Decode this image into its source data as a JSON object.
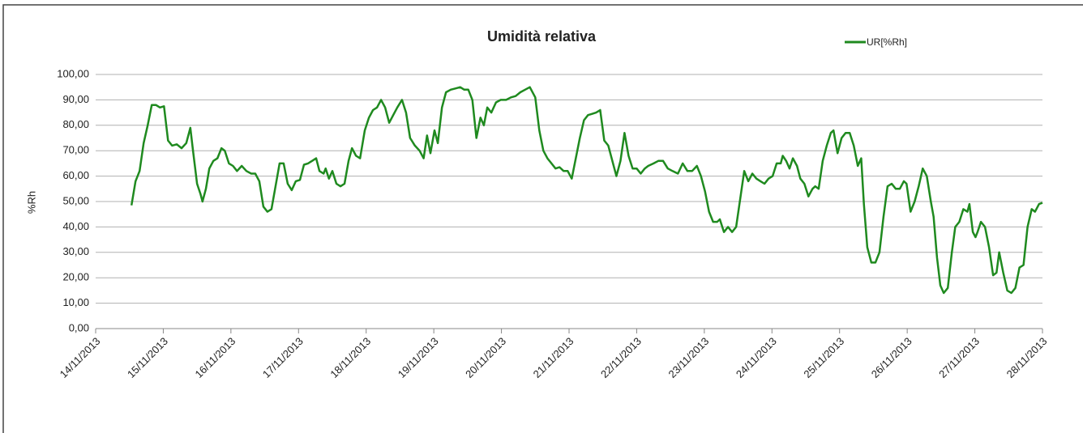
{
  "chart_data": {
    "type": "line",
    "title": "Umidità relativa",
    "y_label": "%Rh",
    "xlim": [
      14,
      28
    ],
    "xticks": [
      {
        "value": 14,
        "label": "14/11/2013"
      },
      {
        "value": 15,
        "label": "15/11/2013"
      },
      {
        "value": 16,
        "label": "16/11/2013"
      },
      {
        "value": 17,
        "label": "17/11/2013"
      },
      {
        "value": 18,
        "label": "18/11/2013"
      },
      {
        "value": 19,
        "label": "19/11/2013"
      },
      {
        "value": 20,
        "label": "20/11/2013"
      },
      {
        "value": 21,
        "label": "21/11/2013"
      },
      {
        "value": 22,
        "label": "22/11/2013"
      },
      {
        "value": 23,
        "label": "23/11/2013"
      },
      {
        "value": 24,
        "label": "24/11/2013"
      },
      {
        "value": 25,
        "label": "25/11/2013"
      },
      {
        "value": 26,
        "label": "26/11/2013"
      },
      {
        "value": 27,
        "label": "27/11/2013"
      },
      {
        "value": 28,
        "label": "28/11/2013"
      }
    ],
    "ylim": [
      0,
      100
    ],
    "yticks": [
      {
        "value": 0,
        "label": "0,00"
      },
      {
        "value": 10,
        "label": "10,00"
      },
      {
        "value": 20,
        "label": "20,00"
      },
      {
        "value": 30,
        "label": "30,00"
      },
      {
        "value": 40,
        "label": "40,00"
      },
      {
        "value": 50,
        "label": "50,00"
      },
      {
        "value": 60,
        "label": "60,00"
      },
      {
        "value": 70,
        "label": "70,00"
      },
      {
        "value": 80,
        "label": "80,00"
      },
      {
        "value": 90,
        "label": "90,00"
      },
      {
        "value": 100,
        "label": "100,00"
      }
    ],
    "grid": true,
    "legend": "top-right",
    "x": [
      14.53,
      14.59,
      14.65,
      14.71,
      14.77,
      14.83,
      14.89,
      14.95,
      15.01,
      15.07,
      15.13,
      15.2,
      15.27,
      15.34,
      15.4,
      15.44,
      15.5,
      15.55,
      15.58,
      15.63,
      15.68,
      15.74,
      15.8,
      15.86,
      15.91,
      15.97,
      16.03,
      16.09,
      16.16,
      16.23,
      16.3,
      16.36,
      16.42,
      16.48,
      16.54,
      16.6,
      16.66,
      16.72,
      16.78,
      16.84,
      16.9,
      16.96,
      17.02,
      17.08,
      17.14,
      17.2,
      17.26,
      17.31,
      17.37,
      17.4,
      17.45,
      17.5,
      17.56,
      17.62,
      17.68,
      17.74,
      17.79,
      17.85,
      17.91,
      17.98,
      18.04,
      18.1,
      18.16,
      18.22,
      18.28,
      18.34,
      18.4,
      18.46,
      18.53,
      18.59,
      18.65,
      18.72,
      18.79,
      18.85,
      18.9,
      18.95,
      19.01,
      19.06,
      19.12,
      19.18,
      19.25,
      19.32,
      19.39,
      19.45,
      19.51,
      19.57,
      19.63,
      19.69,
      19.74,
      19.79,
      19.85,
      19.92,
      19.99,
      20.07,
      20.14,
      20.21,
      20.28,
      20.35,
      20.42,
      20.5,
      20.56,
      20.62,
      20.68,
      20.74,
      20.8,
      20.86,
      20.92,
      20.98,
      21.04,
      21.1,
      21.16,
      21.22,
      21.28,
      21.34,
      21.4,
      21.46,
      21.52,
      21.58,
      21.64,
      21.7,
      21.76,
      21.82,
      21.88,
      21.94,
      22.0,
      22.06,
      22.12,
      22.17,
      22.25,
      22.32,
      22.39,
      22.46,
      22.53,
      22.61,
      22.68,
      22.75,
      22.82,
      22.89,
      22.95,
      23.01,
      23.07,
      23.13,
      23.19,
      23.23,
      23.29,
      23.35,
      23.41,
      23.47,
      23.53,
      23.59,
      23.65,
      23.71,
      23.77,
      23.83,
      23.89,
      23.95,
      24.01,
      24.07,
      24.13,
      24.16,
      24.21,
      24.26,
      24.31,
      24.37,
      24.42,
      24.48,
      24.54,
      24.6,
      24.64,
      24.69,
      24.75,
      24.81,
      24.87,
      24.91,
      24.97,
      25.03,
      25.09,
      25.15,
      25.21,
      25.27,
      25.32,
      25.36,
      25.41,
      25.47,
      25.53,
      25.59,
      25.65,
      25.71,
      25.77,
      25.83,
      25.89,
      25.95,
      25.99,
      26.05,
      26.11,
      26.17,
      26.23,
      26.29,
      26.35,
      26.39,
      26.44,
      26.49,
      26.54,
      26.6,
      26.66,
      26.71,
      26.77,
      26.83,
      26.89,
      26.92,
      26.97,
      27.01,
      27.04,
      27.09,
      27.15,
      27.21,
      27.27,
      27.32,
      27.36,
      27.42,
      27.48,
      27.54,
      27.6,
      27.66,
      27.72,
      27.78,
      27.84,
      27.89,
      27.95,
      28.0
    ],
    "series": [
      {
        "name": "UR[%Rh]",
        "color": "#1f8a1f",
        "values": [
          48.5,
          58,
          62,
          73,
          80,
          88,
          88,
          87,
          87.5,
          74,
          72,
          72.5,
          71,
          73,
          79,
          70,
          57,
          53,
          50,
          55,
          63,
          66,
          67,
          71,
          70,
          65,
          64,
          62,
          64,
          62,
          61,
          61,
          58,
          48,
          46,
          47,
          56,
          65,
          65,
          57,
          54.5,
          58,
          58.5,
          64.5,
          65,
          66,
          67,
          62,
          61,
          63,
          59,
          62,
          57,
          56,
          57,
          66,
          71,
          68,
          67,
          78,
          83,
          86,
          87,
          90,
          87,
          81,
          84,
          87,
          90,
          85,
          75,
          72,
          70,
          67,
          76,
          69,
          78,
          73,
          87,
          93,
          94,
          94.5,
          95,
          94,
          94,
          90,
          75,
          83,
          80,
          87,
          85,
          89,
          90,
          90,
          91,
          91.5,
          93,
          94,
          95,
          91,
          78,
          70,
          67,
          65,
          63,
          63.5,
          62,
          62,
          59,
          67,
          75,
          82,
          84,
          84.5,
          85,
          86,
          74,
          72,
          66,
          60,
          66,
          77,
          68,
          63,
          63,
          61,
          63,
          64,
          65,
          66,
          66,
          63,
          62,
          61,
          65,
          62,
          62,
          64,
          60,
          54,
          46,
          42,
          42,
          43,
          38,
          40,
          38,
          40,
          51,
          62,
          58,
          61,
          59,
          58,
          57,
          59,
          60,
          65,
          65,
          68,
          66,
          63,
          67,
          64,
          59,
          57,
          52,
          55,
          56,
          55,
          66,
          72,
          77,
          78,
          69,
          75,
          77,
          77,
          72,
          64,
          67,
          49,
          32,
          26,
          26,
          30,
          44,
          56,
          57,
          55,
          55,
          58,
          57,
          46,
          50,
          56,
          63,
          60,
          50,
          44,
          28,
          17,
          14,
          16,
          30,
          40,
          42,
          47,
          46,
          49,
          38,
          36,
          38,
          42,
          40,
          32,
          21,
          22,
          30,
          22,
          15,
          14,
          16,
          24,
          25,
          40,
          47,
          46,
          49,
          49.5
        ]
      }
    ]
  }
}
